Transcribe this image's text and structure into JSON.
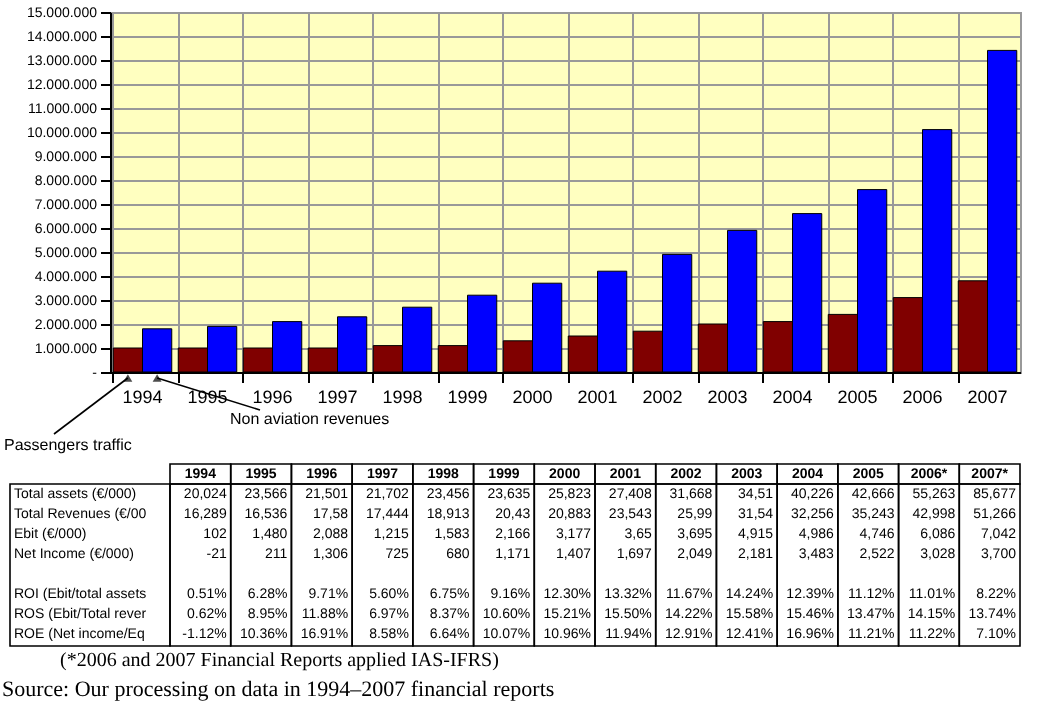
{
  "chart_data": {
    "type": "bar",
    "categories": [
      "1994",
      "1995",
      "1996",
      "1997",
      "1998",
      "1999",
      "2000",
      "2001",
      "2002",
      "2003",
      "2004",
      "2005",
      "2006",
      "2007"
    ],
    "series": [
      {
        "name": "Passengers traffic",
        "color": "#800000",
        "values": [
          1000000,
          1000000,
          1000000,
          1000000,
          1100000,
          1100000,
          1300000,
          1500000,
          1700000,
          2000000,
          2100000,
          2400000,
          3100000,
          3800000
        ]
      },
      {
        "name": "Non aviation revenues",
        "color": "#0000ff",
        "values": [
          1800000,
          1900000,
          2100000,
          2300000,
          2700000,
          3200000,
          3700000,
          4200000,
          4900000,
          5900000,
          6600000,
          7600000,
          10100000,
          13400000
        ]
      }
    ],
    "ylim": [
      0,
      15000000
    ],
    "yticks": [
      {
        "value": 0,
        "label": "-"
      },
      {
        "value": 1000000,
        "label": "1.000.000"
      },
      {
        "value": 2000000,
        "label": "2.000.000"
      },
      {
        "value": 3000000,
        "label": "3.000.000"
      },
      {
        "value": 4000000,
        "label": "4.000.000"
      },
      {
        "value": 5000000,
        "label": "5.000.000"
      },
      {
        "value": 6000000,
        "label": "6.000.000"
      },
      {
        "value": 7000000,
        "label": "7.000.000"
      },
      {
        "value": 8000000,
        "label": "8.000.000"
      },
      {
        "value": 9000000,
        "label": "9.000.000"
      },
      {
        "value": 10000000,
        "label": "10.000.000"
      },
      {
        "value": 11000000,
        "label": "11.000.000"
      },
      {
        "value": 12000000,
        "label": "12.000.000"
      },
      {
        "value": 13000000,
        "label": "13.000.000"
      },
      {
        "value": 14000000,
        "label": "14.000.000"
      },
      {
        "value": 15000000,
        "label": "15.000.000"
      }
    ],
    "grid": true,
    "annotations": [
      "1994",
      "1995",
      "1996",
      "1997",
      "1998",
      "1999",
      "2000",
      "2001",
      "2002",
      "2003",
      "2004",
      "2005",
      "2006*",
      "2007*",
      "Total assets (€/000)",
      "20,024",
      "23,566",
      "21,501",
      "21,702",
      "23,456",
      "23,635",
      "25,823",
      "27,408",
      "31,668",
      "34,51",
      "40,226",
      "42,666",
      "55,263",
      "85,677",
      "Total Revenues (€/00",
      "16,289",
      "16,536",
      "17,58",
      "17,444",
      "18,913",
      "20,43",
      "20,883",
      "23,543",
      "25,99",
      "31,54",
      "32,256",
      "35,243",
      "42,998",
      "51,266",
      "Ebit (€/000)",
      "102",
      "1,480",
      "2,088",
      "1,215",
      "1,583",
      "2,166",
      "3,177",
      "3,65",
      "3,695",
      "4,915",
      "4,986",
      "4,746",
      "6,086",
      "7,042",
      "Net Income (€/000)",
      "-21",
      "211",
      "1,306",
      "725",
      "680",
      "1,171",
      "1,407",
      "1,697",
      "2,049",
      "2,181",
      "3,483",
      "2,522",
      "3,028",
      "3,700",
      "ROI (Ebit/total assets",
      "0.51%",
      "6.28%",
      "9.71%",
      "5.60%",
      "6.75%",
      "9.16%",
      "12.30%",
      "13.32%",
      "11.67%",
      "14.24%",
      "12.39%",
      "11.12%",
      "11.01%",
      "8.22%",
      "ROS (Ebit/Total rever",
      "0.62%",
      "8.95%",
      "11.88%",
      "6.97%",
      "8.37%",
      "10.60%",
      "15.21%",
      "15.50%",
      "14.22%",
      "15.58%",
      "15.46%",
      "13.47%",
      "14.15%",
      "13.74%",
      "ROE (Net income/Eq",
      "-1.12%",
      "10.36%",
      "16.91%",
      "8.58%",
      "6.64%",
      "10.07%",
      "10.96%",
      "11.94%",
      "12.91%",
      "12.41%",
      "16.96%",
      "11.21%",
      "11.22%",
      "7.10%",
      "(*2006 and 2007 Financial Reports applied IAS-IFRS)",
      "Source: Our processing on data in 1994–2007 financial reports"
    ]
  }
}
